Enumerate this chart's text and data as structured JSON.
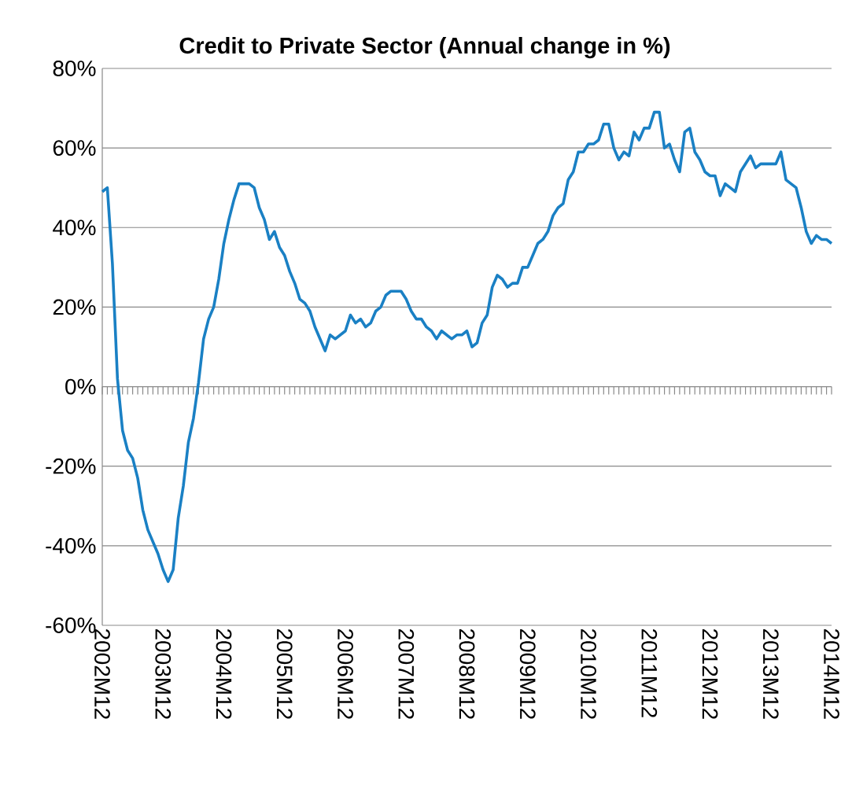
{
  "chart_data": {
    "type": "line",
    "title": "Credit to Private Sector (Annual change in %)",
    "categories": [
      "2002M12",
      null,
      null,
      null,
      null,
      null,
      null,
      null,
      null,
      null,
      null,
      null,
      "2003M12",
      null,
      null,
      null,
      null,
      null,
      null,
      null,
      null,
      null,
      null,
      null,
      "2004M12",
      null,
      null,
      null,
      null,
      null,
      null,
      null,
      null,
      null,
      null,
      null,
      "2005M12",
      null,
      null,
      null,
      null,
      null,
      null,
      null,
      null,
      null,
      null,
      null,
      "2006M12",
      null,
      null,
      null,
      null,
      null,
      null,
      null,
      null,
      null,
      null,
      null,
      "2007M12",
      null,
      null,
      null,
      null,
      null,
      null,
      null,
      null,
      null,
      null,
      null,
      "2008M12",
      null,
      null,
      null,
      null,
      null,
      null,
      null,
      null,
      null,
      null,
      null,
      "2009M12",
      null,
      null,
      null,
      null,
      null,
      null,
      null,
      null,
      null,
      null,
      null,
      "2010M12",
      null,
      null,
      null,
      null,
      null,
      null,
      null,
      null,
      null,
      null,
      null,
      "2011M12",
      null,
      null,
      null,
      null,
      null,
      null,
      null,
      null,
      null,
      null,
      null,
      "2012M12",
      null,
      null,
      null,
      null,
      null,
      null,
      null,
      null,
      null,
      null,
      null,
      "2013M12",
      null,
      null,
      null,
      null,
      null,
      null,
      null,
      null,
      null,
      null,
      null,
      "2014M12"
    ],
    "series": [
      {
        "color": "#1a80c4",
        "values": [
          49,
          50,
          31,
          2,
          -11,
          -16,
          -18,
          -23,
          -31,
          -36,
          -39,
          -42,
          -46,
          -49,
          -46,
          -33,
          -25,
          -14,
          -8,
          1,
          12,
          17,
          20,
          27,
          36,
          42,
          47,
          51,
          51,
          51,
          50,
          45,
          42,
          37,
          39,
          35,
          33,
          29,
          26,
          22,
          21,
          19,
          15,
          12,
          9,
          13,
          12,
          13,
          14,
          18,
          16,
          17,
          15,
          16,
          19,
          20,
          23,
          24,
          24,
          24,
          22,
          19,
          17,
          17,
          15,
          14,
          12,
          14,
          13,
          12,
          13,
          13,
          14,
          10,
          11,
          16,
          18,
          25,
          28,
          27,
          25,
          26,
          26,
          30,
          30,
          33,
          36,
          37,
          39,
          43,
          45,
          46,
          52,
          54,
          59,
          59,
          61,
          61,
          62,
          66,
          66,
          60,
          57,
          59,
          58,
          64,
          62,
          65,
          65,
          69,
          69,
          60,
          61,
          57,
          54,
          64,
          65,
          59,
          57,
          54,
          53,
          53,
          48,
          51,
          50,
          49,
          54,
          56,
          58,
          55,
          56,
          56,
          56,
          56,
          59,
          52,
          51,
          50,
          45,
          39,
          36,
          38,
          37,
          37,
          36
        ]
      }
    ],
    "ylim": [
      -60,
      80
    ],
    "yticks": [
      {
        "value": -60,
        "label": "-60%"
      },
      {
        "value": -40,
        "label": "-40%"
      },
      {
        "value": -20,
        "label": "-20%"
      },
      {
        "value": 0,
        "label": "0%"
      },
      {
        "value": 20,
        "label": "20%"
      },
      {
        "value": 40,
        "label": "40%"
      },
      {
        "value": 60,
        "label": "60%"
      },
      {
        "value": 80,
        "label": "80%"
      }
    ],
    "grid": "y",
    "legend": false,
    "marker": "none",
    "line_style": "solid"
  }
}
